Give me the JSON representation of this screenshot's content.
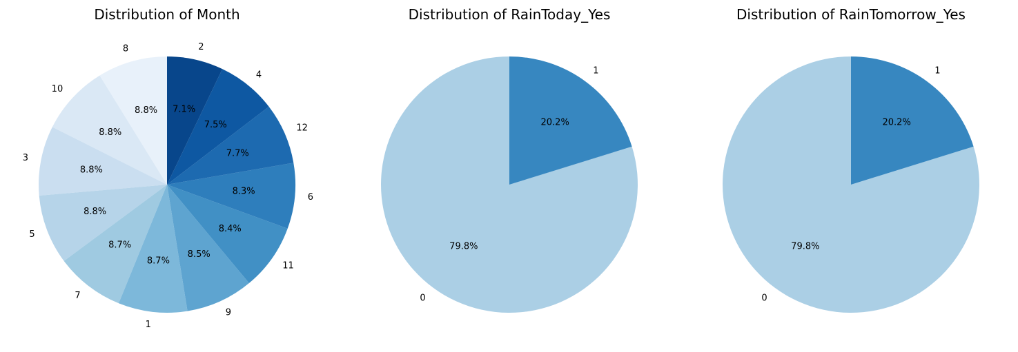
{
  "chart_data": [
    {
      "type": "pie",
      "title": "Distribution of Month",
      "start_angle_deg": 90,
      "direction": "counterclockwise",
      "categories": [
        "8",
        "10",
        "3",
        "5",
        "7",
        "1",
        "9",
        "11",
        "6",
        "12",
        "4",
        "2"
      ],
      "values": [
        8.8,
        8.8,
        8.8,
        8.8,
        8.7,
        8.7,
        8.5,
        8.4,
        8.3,
        7.7,
        7.5,
        7.1
      ],
      "percent_labels": [
        "8.8%",
        "8.8%",
        "8.8%",
        "8.8%",
        "8.7%",
        "8.7%",
        "8.5%",
        "8.4%",
        "8.3%",
        "7.7%",
        "7.5%",
        "7.1%"
      ],
      "colors": [
        "#e8f1fa",
        "#dae8f5",
        "#cadef0",
        "#b6d4e9",
        "#9fcae1",
        "#7db8da",
        "#5ea4d0",
        "#4190c5",
        "#2e7ebc",
        "#1d6ab0",
        "#0e58a2",
        "#08468b"
      ]
    },
    {
      "type": "pie",
      "title": "Distribution of RainToday_Yes",
      "start_angle_deg": 90,
      "direction": "counterclockwise",
      "categories": [
        "0",
        "1"
      ],
      "values": [
        79.8,
        20.2
      ],
      "percent_labels": [
        "79.8%",
        "20.2%"
      ],
      "colors": [
        "#abcfe5",
        "#3787c0"
      ]
    },
    {
      "type": "pie",
      "title": "Distribution of RainTomorrow_Yes",
      "start_angle_deg": 90,
      "direction": "counterclockwise",
      "categories": [
        "0",
        "1"
      ],
      "values": [
        79.8,
        20.2
      ],
      "percent_labels": [
        "79.8%",
        "20.2%"
      ],
      "colors": [
        "#abcfe5",
        "#3787c0"
      ]
    }
  ]
}
